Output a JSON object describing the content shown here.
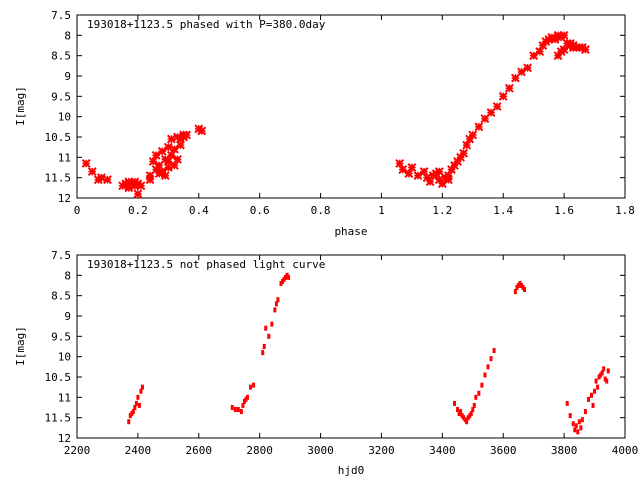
{
  "colors": {
    "points": "#ff0000",
    "axes": "#000000",
    "background": "#ffffff"
  },
  "chart_data": [
    {
      "type": "scatter",
      "title": "193018+1123.5 phased with P=380.0day",
      "xlabel": "phase",
      "ylabel": "I[mag]",
      "xlim": [
        0,
        1.8
      ],
      "ylim": [
        12,
        7.5
      ],
      "y_inverted": true,
      "xticks": [
        "0",
        "0.2",
        "0.4",
        "0.6",
        "0.8",
        "1",
        "1.2",
        "1.4",
        "1.6",
        "1.8"
      ],
      "yticks": [
        "7.5",
        "8",
        "8.5",
        "9",
        "9.5",
        "10",
        "10.5",
        "11",
        "11.5",
        "12"
      ],
      "grid": false,
      "marker": "x",
      "series": [
        {
          "x": [
            0.03,
            0.05,
            0.07,
            0.08,
            0.1,
            0.15,
            0.16,
            0.17,
            0.17,
            0.18,
            0.19,
            0.19,
            0.2,
            0.2,
            0.21,
            0.24,
            0.24,
            0.25,
            0.26,
            0.26,
            0.27,
            0.27,
            0.28,
            0.28,
            0.29,
            0.29,
            0.3,
            0.3,
            0.3,
            0.31,
            0.31,
            0.32,
            0.32,
            0.33,
            0.33,
            0.34,
            0.34,
            0.35,
            0.35,
            0.36,
            0.4,
            0.41,
            1.06,
            1.07,
            1.09,
            1.1,
            1.12,
            1.14,
            1.15,
            1.16,
            1.17,
            1.18,
            1.19,
            1.19,
            1.2,
            1.21,
            1.22,
            1.22,
            1.23,
            1.24,
            1.25,
            1.26,
            1.27,
            1.28,
            1.29,
            1.3,
            1.32,
            1.34,
            1.36,
            1.38,
            1.4,
            1.42,
            1.44,
            1.46,
            1.48,
            1.5,
            1.52,
            1.53,
            1.54,
            1.55,
            1.56,
            1.57,
            1.58,
            1.59,
            1.6,
            1.61,
            1.62,
            1.63,
            1.64,
            1.65,
            1.66,
            1.67,
            1.58,
            1.59,
            1.6,
            1.62,
            1.63
          ],
          "y": [
            11.15,
            11.35,
            11.55,
            11.5,
            11.55,
            11.7,
            11.65,
            11.6,
            11.75,
            11.65,
            11.7,
            11.6,
            11.9,
            11.65,
            11.7,
            11.45,
            11.55,
            11.1,
            11.3,
            10.95,
            11.4,
            11.2,
            11.35,
            10.85,
            11.45,
            11.05,
            11.25,
            10.75,
            11.1,
            10.95,
            10.55,
            11.2,
            10.8,
            11.05,
            10.5,
            10.7,
            10.55,
            10.45,
            10.5,
            10.45,
            10.3,
            10.35,
            11.15,
            11.3,
            11.4,
            11.25,
            11.45,
            11.35,
            11.5,
            11.6,
            11.45,
            11.4,
            11.55,
            11.35,
            11.65,
            11.5,
            11.55,
            11.45,
            11.3,
            11.2,
            11.1,
            11.0,
            10.9,
            10.7,
            10.55,
            10.45,
            10.25,
            10.05,
            9.9,
            9.75,
            9.5,
            9.3,
            9.05,
            8.9,
            8.8,
            8.5,
            8.4,
            8.25,
            8.15,
            8.1,
            8.05,
            8.1,
            8.0,
            8.05,
            8.0,
            8.2,
            8.2,
            8.25,
            8.3,
            8.3,
            8.3,
            8.35,
            8.5,
            8.4,
            8.35,
            8.25,
            8.3
          ]
        }
      ]
    },
    {
      "type": "scatter",
      "title": "193018+1123.5 not phased light curve",
      "xlabel": "hjd0",
      "ylabel": "I[mag]",
      "xlim": [
        2200,
        4000
      ],
      "ylim": [
        12,
        7.5
      ],
      "y_inverted": true,
      "xticks": [
        "2200",
        "2400",
        "2600",
        "2800",
        "3000",
        "3200",
        "3400",
        "3600",
        "3800",
        "4000"
      ],
      "yticks": [
        "7.5",
        "8",
        "8.5",
        "9",
        "9.5",
        "10",
        "10.5",
        "11",
        "11.5",
        "12"
      ],
      "grid": false,
      "marker": "dot",
      "series": [
        {
          "x": [
            2370,
            2375,
            2380,
            2385,
            2390,
            2395,
            2400,
            2405,
            2410,
            2415,
            2710,
            2720,
            2730,
            2740,
            2745,
            2750,
            2755,
            2760,
            2770,
            2780,
            2810,
            2815,
            2820,
            2830,
            2840,
            2850,
            2855,
            2860,
            2870,
            2875,
            2880,
            2885,
            2890,
            2895,
            3440,
            3450,
            3455,
            3460,
            3465,
            3470,
            3475,
            3480,
            3485,
            3490,
            3495,
            3500,
            3505,
            3510,
            3520,
            3530,
            3540,
            3550,
            3560,
            3570,
            3640,
            3645,
            3650,
            3655,
            3660,
            3665,
            3670,
            3810,
            3820,
            3830,
            3835,
            3840,
            3845,
            3850,
            3855,
            3860,
            3870,
            3880,
            3890,
            3895,
            3900,
            3905,
            3910,
            3915,
            3920,
            3925,
            3930,
            3935,
            3940,
            3945
          ],
          "y": [
            11.6,
            11.45,
            11.4,
            11.35,
            11.25,
            11.15,
            11.0,
            11.2,
            10.85,
            10.75,
            11.25,
            11.3,
            11.3,
            11.35,
            11.2,
            11.1,
            11.05,
            11.0,
            10.75,
            10.7,
            9.9,
            9.75,
            9.3,
            9.5,
            9.2,
            8.85,
            8.7,
            8.6,
            8.2,
            8.15,
            8.1,
            8.05,
            8.0,
            8.05,
            11.15,
            11.3,
            11.4,
            11.35,
            11.45,
            11.5,
            11.55,
            11.6,
            11.5,
            11.45,
            11.4,
            11.3,
            11.2,
            11.0,
            10.9,
            10.7,
            10.45,
            10.25,
            10.05,
            9.85,
            8.4,
            8.3,
            8.25,
            8.2,
            8.25,
            8.3,
            8.35,
            11.15,
            11.45,
            11.65,
            11.8,
            11.7,
            11.85,
            11.6,
            11.75,
            11.55,
            11.35,
            11.05,
            10.95,
            11.2,
            10.85,
            10.6,
            10.75,
            10.5,
            10.45,
            10.4,
            10.3,
            10.55,
            10.6,
            10.35
          ]
        }
      ]
    }
  ]
}
